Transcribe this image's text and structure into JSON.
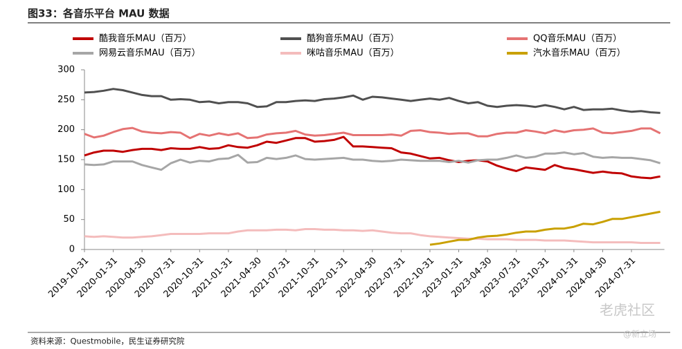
{
  "chart_data": {
    "type": "line",
    "title": "图33：各音乐平台 MAU 数据",
    "source": "资料来源：Questmobile，民生证券研究院",
    "annotations": [
      "老虎社区",
      "@新立场"
    ],
    "categories": [
      "2019-10-31",
      null,
      null,
      "2020-01-31",
      null,
      null,
      "2020-04-30",
      null,
      null,
      "2020-07-31",
      null,
      null,
      "2020-10-31",
      null,
      null,
      "2021-01-31",
      null,
      null,
      "2021-04-30",
      null,
      null,
      "2021-07-31",
      null,
      null,
      "2021-10-31",
      null,
      null,
      "2022-01-31",
      null,
      null,
      "2022-04-30",
      null,
      null,
      "2022-07-31",
      null,
      null,
      "2022-10-31",
      null,
      null,
      "2023-01-31",
      null,
      null,
      "2023-04-30",
      null,
      null,
      "2023-07-31",
      null,
      null,
      "2023-10-31",
      null,
      null,
      "2024-01-31",
      null,
      null,
      "2024-04-30",
      null,
      null,
      "2024-07-31",
      null,
      null,
      null
    ],
    "ylim": [
      0,
      300
    ],
    "yticks": [
      0,
      50,
      100,
      150,
      200,
      250,
      300
    ],
    "grid": false,
    "series": [
      {
        "name": "酷我音乐MAU（百万）",
        "color": "#c00000",
        "values": [
          157,
          162,
          165,
          165,
          163,
          166,
          168,
          168,
          166,
          169,
          168,
          168,
          171,
          168,
          169,
          174,
          171,
          170,
          174,
          180,
          178,
          182,
          186,
          186,
          180,
          181,
          183,
          188,
          172,
          172,
          171,
          170,
          169,
          162,
          160,
          156,
          152,
          153,
          149,
          146,
          148,
          149,
          147,
          140,
          135,
          131,
          137,
          135,
          133,
          141,
          136,
          134,
          131,
          128,
          130,
          128,
          127,
          122,
          120,
          119,
          122
        ]
      },
      {
        "name": "酷狗音乐MAU（百万）",
        "color": "#505050",
        "values": [
          262,
          263,
          265,
          268,
          266,
          262,
          258,
          256,
          256,
          250,
          251,
          250,
          246,
          247,
          244,
          246,
          246,
          244,
          238,
          239,
          246,
          246,
          248,
          249,
          248,
          251,
          252,
          254,
          257,
          250,
          255,
          254,
          252,
          250,
          248,
          250,
          252,
          250,
          253,
          248,
          244,
          246,
          240,
          238,
          240,
          241,
          240,
          238,
          241,
          238,
          234,
          238,
          233,
          234,
          234,
          235,
          232,
          230,
          231,
          229,
          228
        ]
      },
      {
        "name": "QQ音乐MAU（百万）",
        "color": "#e57373",
        "values": [
          193,
          187,
          190,
          196,
          201,
          203,
          197,
          195,
          194,
          196,
          195,
          186,
          193,
          190,
          194,
          191,
          194,
          186,
          187,
          192,
          194,
          195,
          198,
          192,
          190,
          191,
          193,
          195,
          191,
          191,
          191,
          191,
          192,
          190,
          198,
          199,
          196,
          195,
          193,
          194,
          194,
          189,
          189,
          193,
          195,
          195,
          199,
          197,
          194,
          199,
          196,
          199,
          200,
          202,
          195,
          194,
          196,
          198,
          202,
          202,
          194
        ]
      },
      {
        "name": "网易云音乐MAU（百万）",
        "color": "#a6a6a6",
        "values": [
          142,
          141,
          142,
          147,
          147,
          147,
          141,
          137,
          133,
          144,
          150,
          145,
          148,
          147,
          151,
          152,
          158,
          145,
          146,
          153,
          151,
          153,
          157,
          151,
          150,
          151,
          152,
          153,
          150,
          150,
          148,
          147,
          148,
          150,
          149,
          148,
          148,
          148,
          146,
          148,
          145,
          149,
          150,
          150,
          153,
          157,
          153,
          155,
          160,
          160,
          162,
          159,
          161,
          155,
          153,
          154,
          153,
          153,
          151,
          149,
          144
        ]
      },
      {
        "name": "咪咕音乐MAU（百万）",
        "color": "#f4bcbc",
        "values": [
          22,
          21,
          22,
          21,
          20,
          20,
          21,
          22,
          24,
          26,
          26,
          26,
          26,
          27,
          27,
          27,
          30,
          32,
          32,
          32,
          33,
          33,
          32,
          34,
          34,
          33,
          33,
          32,
          32,
          31,
          32,
          30,
          28,
          27,
          27,
          24,
          22,
          21,
          20,
          19,
          18,
          18,
          17,
          17,
          17,
          16,
          16,
          16,
          15,
          15,
          15,
          14,
          13,
          12,
          12,
          12,
          12,
          12,
          11,
          11,
          11
        ]
      },
      {
        "name": "汽水音乐MAU（百万）",
        "color": "#c9a000",
        "values": [
          null,
          null,
          null,
          null,
          null,
          null,
          null,
          null,
          null,
          null,
          null,
          null,
          null,
          null,
          null,
          null,
          null,
          null,
          null,
          null,
          null,
          null,
          null,
          null,
          null,
          null,
          null,
          null,
          null,
          null,
          null,
          null,
          null,
          null,
          null,
          null,
          8,
          10,
          13,
          16,
          16,
          20,
          22,
          23,
          25,
          28,
          30,
          30,
          33,
          35,
          35,
          38,
          43,
          42,
          46,
          51,
          51,
          54,
          57,
          60,
          63
        ]
      }
    ]
  }
}
